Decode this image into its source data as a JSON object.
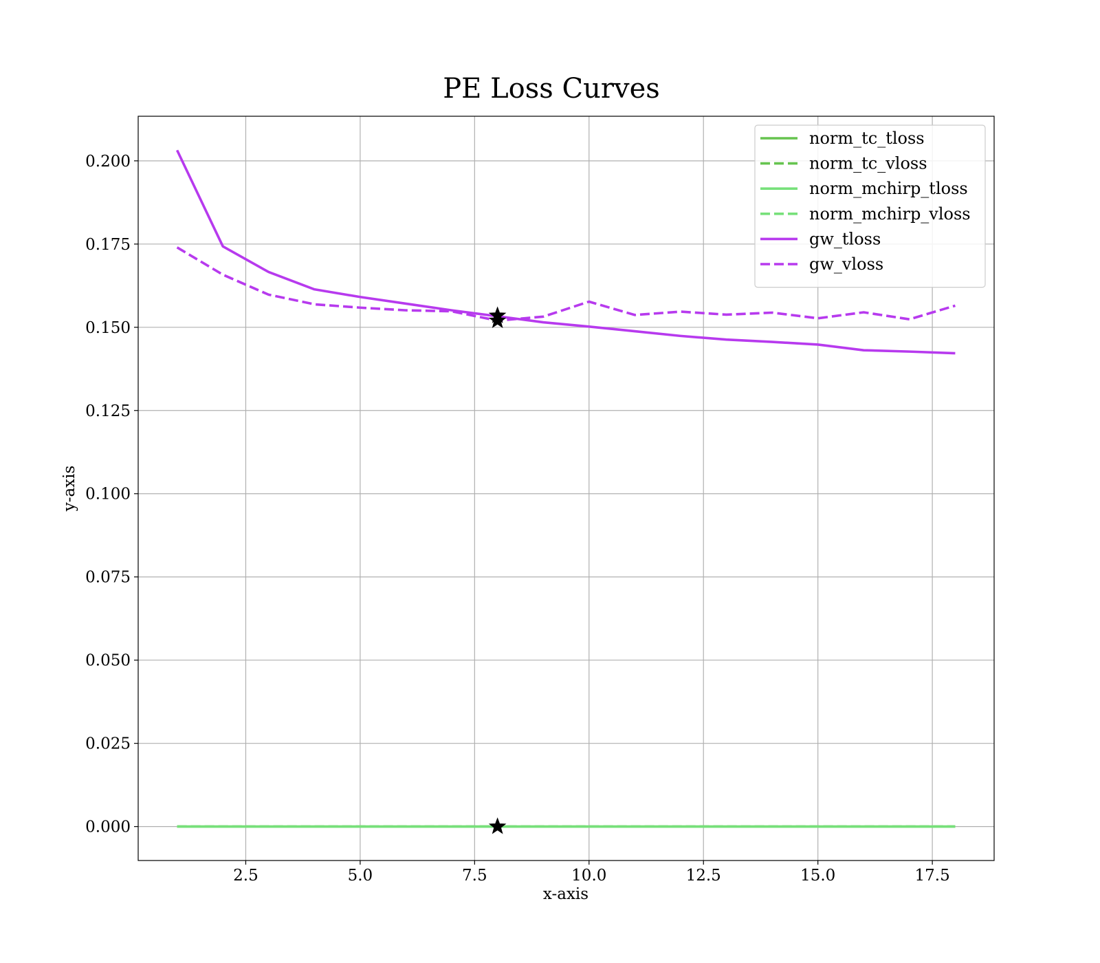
{
  "chart_data": {
    "type": "line",
    "title": "PE Loss Curves",
    "xlabel": "x-axis",
    "ylabel": "y-axis",
    "xlim": [
      0.15,
      18.85
    ],
    "ylim": [
      -0.0102,
      0.2134
    ],
    "xticks": [
      2.5,
      5.0,
      7.5,
      10.0,
      12.5,
      15.0,
      17.5
    ],
    "xtick_labels": [
      "2.5",
      "5.0",
      "7.5",
      "10.0",
      "12.5",
      "15.0",
      "17.5"
    ],
    "yticks": [
      0.0,
      0.025,
      0.05,
      0.075,
      0.1,
      0.125,
      0.15,
      0.175,
      0.2
    ],
    "ytick_labels": [
      "0.000",
      "0.025",
      "0.050",
      "0.075",
      "0.100",
      "0.125",
      "0.150",
      "0.175",
      "0.200"
    ],
    "grid": true,
    "legend_position": "top-right",
    "x": [
      1,
      2,
      3,
      4,
      5,
      6,
      7,
      8,
      9,
      10,
      11,
      12,
      13,
      14,
      15,
      16,
      17,
      18
    ],
    "series": [
      {
        "name": "norm_tc_tloss",
        "color": "#66c44f",
        "dash": "solid",
        "values": [
          0,
          0,
          0,
          0,
          0,
          0,
          0,
          0,
          0,
          0,
          0,
          0,
          0,
          0,
          0,
          0,
          0,
          0
        ]
      },
      {
        "name": "norm_tc_vloss",
        "color": "#66c44f",
        "dash": "dashed",
        "values": [
          0,
          0,
          0,
          0,
          0,
          0,
          0,
          0,
          0,
          0,
          0,
          0,
          0,
          0,
          0,
          0,
          0,
          0
        ]
      },
      {
        "name": "norm_mchirp_tloss",
        "color": "#77e07a",
        "dash": "solid",
        "values": [
          0,
          0,
          0,
          0,
          0,
          0,
          0,
          0,
          0,
          0,
          0,
          0,
          0,
          0,
          0,
          0,
          0,
          0
        ]
      },
      {
        "name": "norm_mchirp_vloss",
        "color": "#77e07a",
        "dash": "dashed",
        "values": [
          0,
          0,
          0,
          0,
          0,
          0,
          0,
          0,
          0,
          0,
          0,
          0,
          0,
          0,
          0,
          0,
          0,
          0
        ]
      },
      {
        "name": "gw_tloss",
        "color": "#b73aee",
        "dash": "solid",
        "values": [
          0.2032,
          0.1743,
          0.1666,
          0.1614,
          0.1591,
          0.1571,
          0.1551,
          0.1533,
          0.1515,
          0.1502,
          0.1488,
          0.1474,
          0.1463,
          0.1456,
          0.1448,
          0.1431,
          0.1427,
          0.1422
        ]
      },
      {
        "name": "gw_vloss",
        "color": "#b73aee",
        "dash": "dashed",
        "values": [
          0.174,
          0.1658,
          0.1598,
          0.1569,
          0.1559,
          0.1551,
          0.1548,
          0.152,
          0.1532,
          0.1577,
          0.1537,
          0.1547,
          0.1538,
          0.1544,
          0.1527,
          0.1545,
          0.1524,
          0.1565
        ]
      }
    ],
    "markers": [
      {
        "x": 8,
        "y": 0.1535,
        "symbol": "star",
        "color": "#000000"
      },
      {
        "x": 8,
        "y": 0.152,
        "symbol": "star",
        "color": "#000000"
      },
      {
        "x": 8,
        "y": 0.0,
        "symbol": "star",
        "color": "#000000"
      }
    ]
  }
}
